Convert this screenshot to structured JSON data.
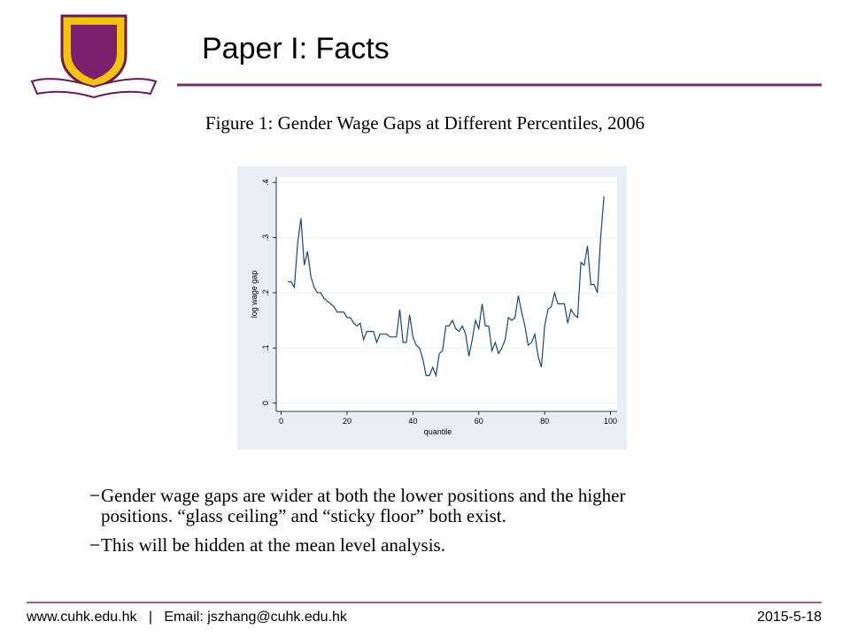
{
  "header": {
    "title": "Paper I: Facts"
  },
  "figure": {
    "caption": "Figure 1: Gender Wage Gaps at Different Percentiles, 2006"
  },
  "chart_data": {
    "type": "line",
    "xlabel": "quantile",
    "ylabel": "log wage gap",
    "color": "#1a476f",
    "x": [
      2,
      3,
      4,
      5,
      6,
      7,
      8,
      9,
      10,
      11,
      12,
      13,
      14,
      15,
      16,
      17,
      18,
      19,
      20,
      21,
      22,
      23,
      24,
      25,
      26,
      27,
      28,
      29,
      30,
      31,
      32,
      33,
      34,
      35,
      36,
      37,
      38,
      39,
      40,
      41,
      42,
      43,
      44,
      45,
      46,
      47,
      48,
      49,
      50,
      51,
      52,
      53,
      54,
      55,
      56,
      57,
      58,
      59,
      60,
      61,
      62,
      63,
      64,
      65,
      66,
      67,
      68,
      69,
      70,
      71,
      72,
      73,
      74,
      75,
      76,
      77,
      78,
      79,
      80,
      81,
      82,
      83,
      84,
      85,
      86,
      87,
      88,
      89,
      90,
      91,
      92,
      93,
      94,
      95,
      96,
      97,
      98
    ],
    "values": [
      0.22,
      0.22,
      0.21,
      0.29,
      0.335,
      0.25,
      0.275,
      0.23,
      0.21,
      0.2,
      0.2,
      0.19,
      0.185,
      0.18,
      0.175,
      0.165,
      0.165,
      0.165,
      0.155,
      0.155,
      0.145,
      0.14,
      0.145,
      0.115,
      0.13,
      0.13,
      0.13,
      0.11,
      0.125,
      0.125,
      0.125,
      0.12,
      0.12,
      0.12,
      0.17,
      0.11,
      0.11,
      0.16,
      0.12,
      0.105,
      0.1,
      0.08,
      0.05,
      0.05,
      0.065,
      0.05,
      0.09,
      0.095,
      0.14,
      0.14,
      0.15,
      0.135,
      0.13,
      0.14,
      0.125,
      0.085,
      0.115,
      0.15,
      0.135,
      0.18,
      0.14,
      0.14,
      0.095,
      0.11,
      0.09,
      0.1,
      0.115,
      0.155,
      0.15,
      0.155,
      0.195,
      0.165,
      0.14,
      0.105,
      0.11,
      0.125,
      0.085,
      0.065,
      0.14,
      0.17,
      0.175,
      0.2,
      0.18,
      0.18,
      0.18,
      0.145,
      0.17,
      0.16,
      0.155,
      0.255,
      0.25,
      0.285,
      0.215,
      0.215,
      0.2,
      0.3,
      0.375
    ],
    "xlim": [
      -1.5,
      102
    ],
    "ylim": [
      -0.015,
      0.41
    ],
    "xticks": [
      0,
      20,
      40,
      60,
      80,
      100
    ],
    "yticks": [
      0,
      {
        "value": 0.1,
        "label": ".1"
      },
      {
        "value": 0.2,
        "label": ".2"
      },
      {
        "value": 0.3,
        "label": ".3"
      },
      {
        "value": 0.4,
        "label": ".4"
      }
    ],
    "grid": true
  },
  "bullets": [
    "Gender wage gaps are wider at both the lower positions and the higher",
    "positions. “glass ceiling” and “sticky floor” both exist.",
    "This will be hidden at the mean level analysis."
  ],
  "footer": {
    "left": "www.cuhk.edu.hk   |   Email: jszhang@cuhk.edu.hk",
    "right": "2015-5-18"
  }
}
